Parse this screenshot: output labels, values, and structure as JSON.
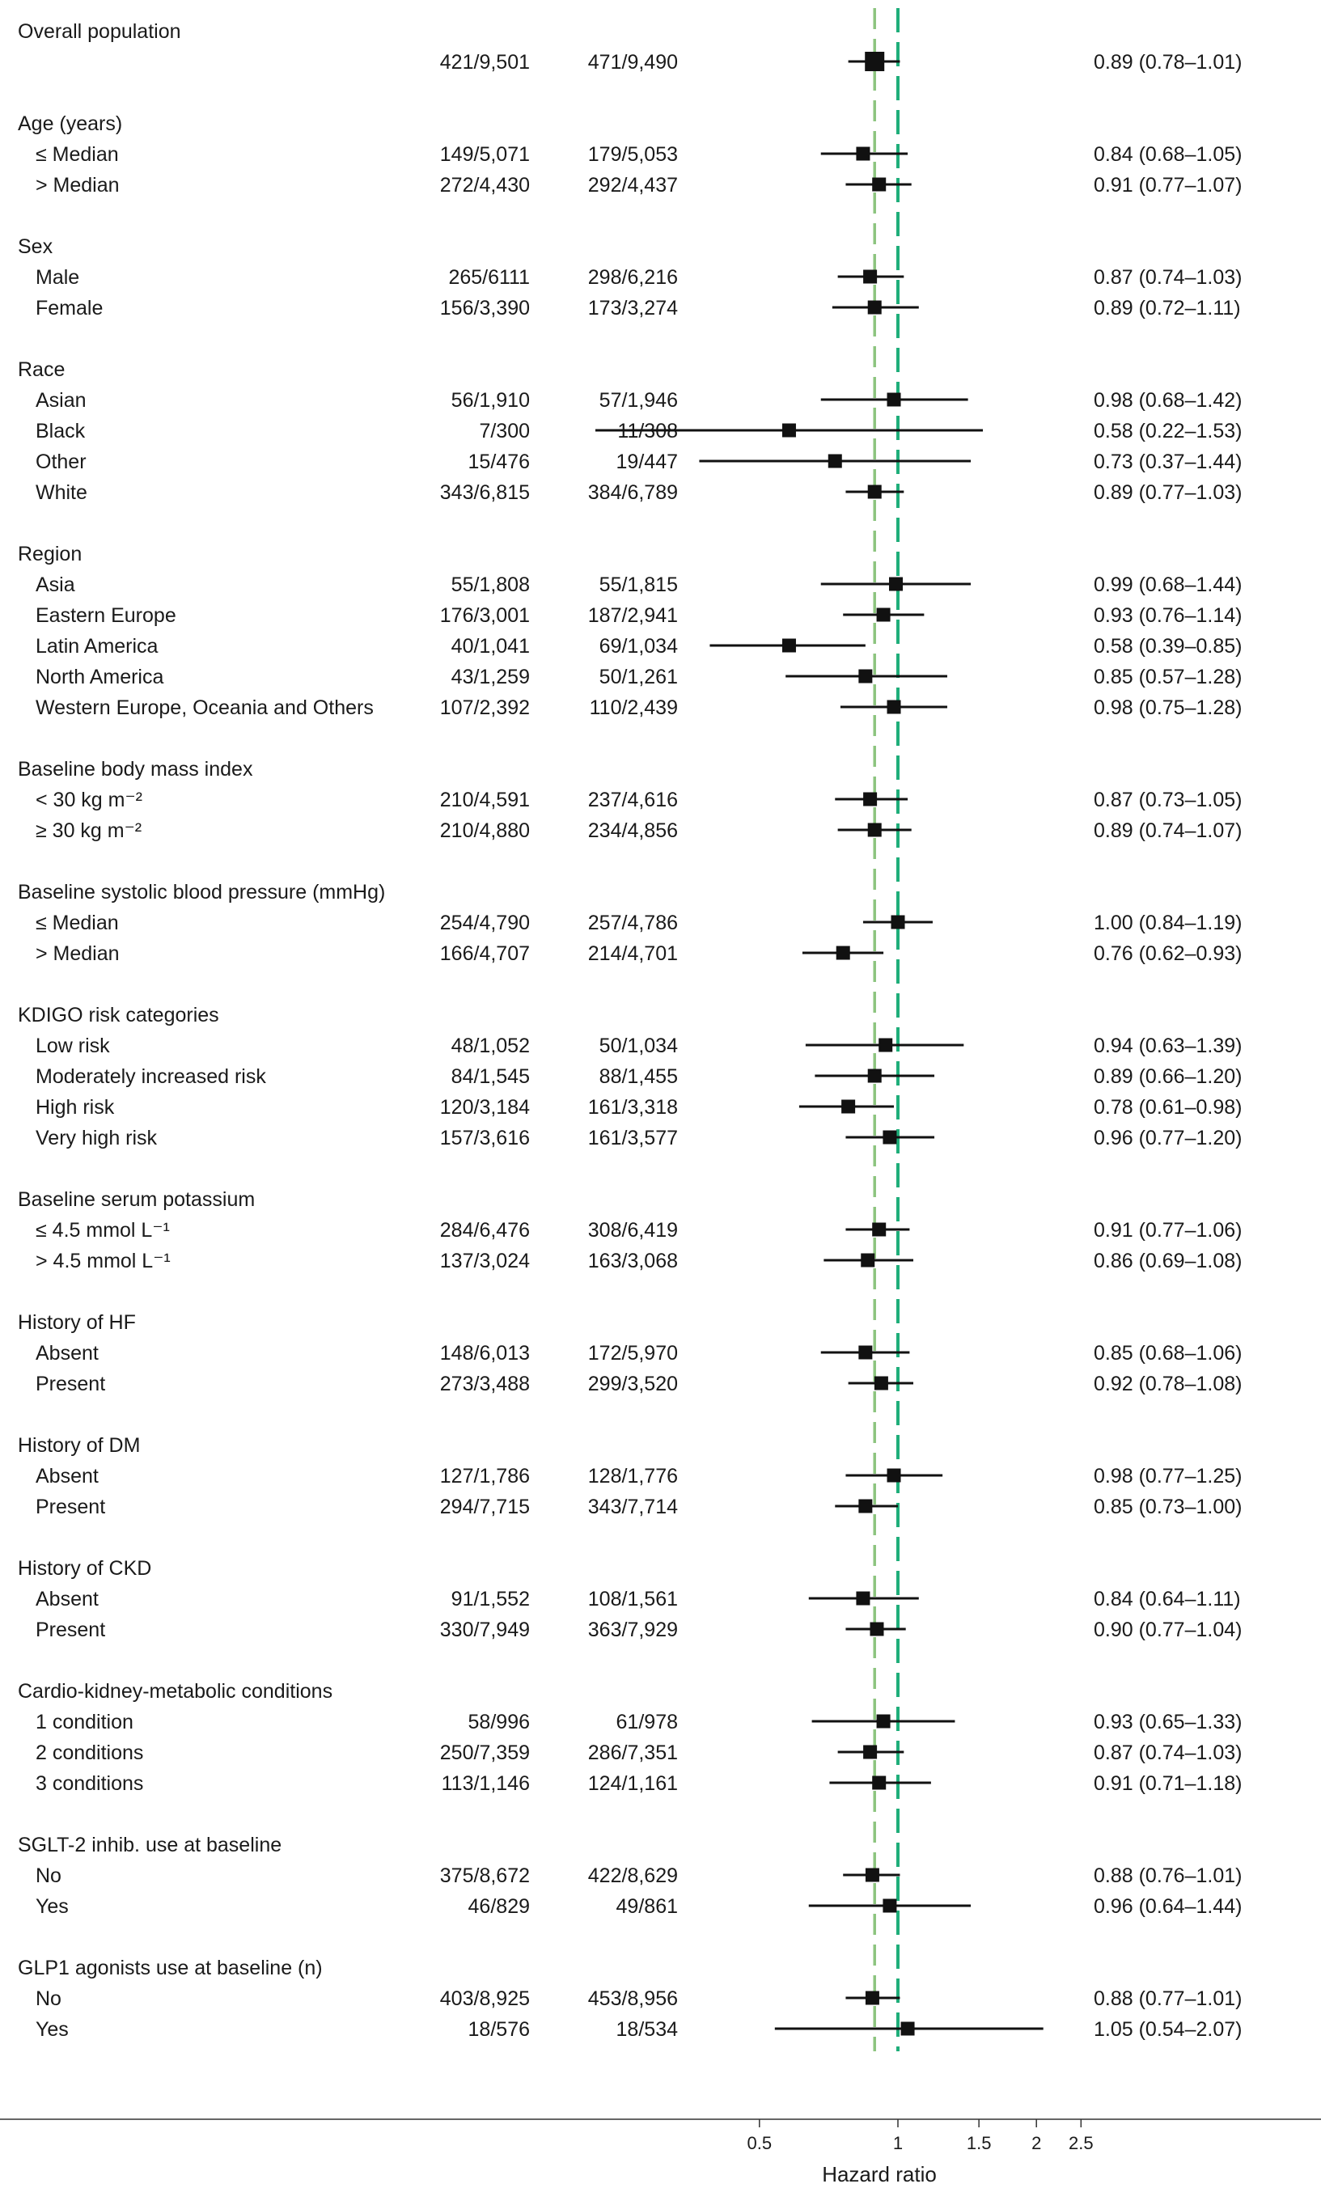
{
  "chart_data": {
    "type": "forest",
    "x_scale": "log",
    "xlim": [
      0.3,
      3.2
    ],
    "xticks": [
      {
        "value": 0.5,
        "label": "0.5"
      },
      {
        "value": 1,
        "label": "1"
      },
      {
        "value": 1.5,
        "label": "1.5"
      },
      {
        "value": 2,
        "label": "2"
      },
      {
        "value": 2.5,
        "label": "2.5"
      }
    ],
    "xlabel": "Hazard ratio",
    "reference_lines": [
      {
        "value": 1.0,
        "color": "#1fae7a"
      },
      {
        "value": 0.89,
        "color": "#8cc47f"
      }
    ],
    "groups": [
      {
        "title": "Overall population",
        "rows": [
          {
            "label": "",
            "n1": "421/9,501",
            "n2": "471/9,490",
            "hr": 0.89,
            "lo": 0.78,
            "hi": 1.01,
            "text": "0.89 (0.78–1.01)"
          }
        ]
      },
      {
        "title": "Age (years)",
        "rows": [
          {
            "label": "≤ Median",
            "n1": "149/5,071",
            "n2": "179/5,053",
            "hr": 0.84,
            "lo": 0.68,
            "hi": 1.05,
            "text": "0.84 (0.68–1.05)"
          },
          {
            "label": "> Median",
            "n1": "272/4,430",
            "n2": "292/4,437",
            "hr": 0.91,
            "lo": 0.77,
            "hi": 1.07,
            "text": "0.91 (0.77–1.07)"
          }
        ]
      },
      {
        "title": "Sex",
        "rows": [
          {
            "label": "Male",
            "n1": "265/6111",
            "n2": "298/6,216",
            "hr": 0.87,
            "lo": 0.74,
            "hi": 1.03,
            "text": "0.87 (0.74–1.03)"
          },
          {
            "label": "Female",
            "n1": "156/3,390",
            "n2": "173/3,274",
            "hr": 0.89,
            "lo": 0.72,
            "hi": 1.11,
            "text": "0.89 (0.72–1.11)"
          }
        ]
      },
      {
        "title": "Race",
        "rows": [
          {
            "label": "Asian",
            "n1": "56/1,910",
            "n2": "57/1,946",
            "hr": 0.98,
            "lo": 0.68,
            "hi": 1.42,
            "text": "0.98 (0.68–1.42)"
          },
          {
            "label": "Black",
            "n1": "7/300",
            "n2": "11/308",
            "hr": 0.58,
            "lo": 0.22,
            "hi": 1.53,
            "text": "0.58 (0.22–1.53)"
          },
          {
            "label": "Other",
            "n1": "15/476",
            "n2": "19/447",
            "hr": 0.73,
            "lo": 0.37,
            "hi": 1.44,
            "text": "0.73 (0.37–1.44)"
          },
          {
            "label": "White",
            "n1": "343/6,815",
            "n2": "384/6,789",
            "hr": 0.89,
            "lo": 0.77,
            "hi": 1.03,
            "text": "0.89 (0.77–1.03)"
          }
        ]
      },
      {
        "title": "Region",
        "rows": [
          {
            "label": "Asia",
            "n1": "55/1,808",
            "n2": "55/1,815",
            "hr": 0.99,
            "lo": 0.68,
            "hi": 1.44,
            "text": "0.99 (0.68–1.44)"
          },
          {
            "label": "Eastern Europe",
            "n1": "176/3,001",
            "n2": "187/2,941",
            "hr": 0.93,
            "lo": 0.76,
            "hi": 1.14,
            "text": "0.93 (0.76–1.14)"
          },
          {
            "label": "Latin America",
            "n1": "40/1,041",
            "n2": "69/1,034",
            "hr": 0.58,
            "lo": 0.39,
            "hi": 0.85,
            "text": "0.58 (0.39–0.85)"
          },
          {
            "label": "North America",
            "n1": "43/1,259",
            "n2": "50/1,261",
            "hr": 0.85,
            "lo": 0.57,
            "hi": 1.28,
            "text": "0.85 (0.57–1.28)"
          },
          {
            "label": "Western Europe, Oceania and Others",
            "n1": "107/2,392",
            "n2": "110/2,439",
            "hr": 0.98,
            "lo": 0.75,
            "hi": 1.28,
            "text": "0.98 (0.75–1.28)"
          }
        ]
      },
      {
        "title": "Baseline body mass index",
        "rows": [
          {
            "label": "< 30 kg m⁻²",
            "n1": "210/4,591",
            "n2": "237/4,616",
            "hr": 0.87,
            "lo": 0.73,
            "hi": 1.05,
            "text": "0.87 (0.73–1.05)"
          },
          {
            "label": "≥ 30 kg m⁻²",
            "n1": "210/4,880",
            "n2": "234/4,856",
            "hr": 0.89,
            "lo": 0.74,
            "hi": 1.07,
            "text": "0.89 (0.74–1.07)"
          }
        ]
      },
      {
        "title": "Baseline systolic blood pressure (mmHg)",
        "rows": [
          {
            "label": "≤ Median",
            "n1": "254/4,790",
            "n2": "257/4,786",
            "hr": 1.0,
            "lo": 0.84,
            "hi": 1.19,
            "text": "1.00 (0.84–1.19)"
          },
          {
            "label": "> Median",
            "n1": "166/4,707",
            "n2": "214/4,701",
            "hr": 0.76,
            "lo": 0.62,
            "hi": 0.93,
            "text": "0.76 (0.62–0.93)"
          }
        ]
      },
      {
        "title": "KDIGO risk categories",
        "rows": [
          {
            "label": "Low risk",
            "n1": "48/1,052",
            "n2": "50/1,034",
            "hr": 0.94,
            "lo": 0.63,
            "hi": 1.39,
            "text": "0.94 (0.63–1.39)"
          },
          {
            "label": "Moderately increased risk",
            "n1": "84/1,545",
            "n2": "88/1,455",
            "hr": 0.89,
            "lo": 0.66,
            "hi": 1.2,
            "text": "0.89 (0.66–1.20)"
          },
          {
            "label": "High risk",
            "n1": "120/3,184",
            "n2": "161/3,318",
            "hr": 0.78,
            "lo": 0.61,
            "hi": 0.98,
            "text": "0.78 (0.61–0.98)"
          },
          {
            "label": "Very high risk",
            "n1": "157/3,616",
            "n2": "161/3,577",
            "hr": 0.96,
            "lo": 0.77,
            "hi": 1.2,
            "text": "0.96 (0.77–1.20)"
          }
        ]
      },
      {
        "title": "Baseline serum potassium",
        "rows": [
          {
            "label": "≤ 4.5 mmol L⁻¹",
            "n1": "284/6,476",
            "n2": "308/6,419",
            "hr": 0.91,
            "lo": 0.77,
            "hi": 1.06,
            "text": "0.91 (0.77–1.06)"
          },
          {
            "label": "> 4.5 mmol L⁻¹",
            "n1": "137/3,024",
            "n2": "163/3,068",
            "hr": 0.86,
            "lo": 0.69,
            "hi": 1.08,
            "text": "0.86 (0.69–1.08)"
          }
        ]
      },
      {
        "title": "History of HF",
        "rows": [
          {
            "label": "Absent",
            "n1": "148/6,013",
            "n2": "172/5,970",
            "hr": 0.85,
            "lo": 0.68,
            "hi": 1.06,
            "text": "0.85 (0.68–1.06)"
          },
          {
            "label": "Present",
            "n1": "273/3,488",
            "n2": "299/3,520",
            "hr": 0.92,
            "lo": 0.78,
            "hi": 1.08,
            "text": "0.92 (0.78–1.08)"
          }
        ]
      },
      {
        "title": "History of DM",
        "rows": [
          {
            "label": "Absent",
            "n1": "127/1,786",
            "n2": "128/1,776",
            "hr": 0.98,
            "lo": 0.77,
            "hi": 1.25,
            "text": "0.98 (0.77–1.25)"
          },
          {
            "label": "Present",
            "n1": "294/7,715",
            "n2": "343/7,714",
            "hr": 0.85,
            "lo": 0.73,
            "hi": 1.0,
            "text": "0.85 (0.73–1.00)"
          }
        ]
      },
      {
        "title": "History of CKD",
        "rows": [
          {
            "label": "Absent",
            "n1": "91/1,552",
            "n2": "108/1,561",
            "hr": 0.84,
            "lo": 0.64,
            "hi": 1.11,
            "text": "0.84 (0.64–1.11)"
          },
          {
            "label": "Present",
            "n1": "330/7,949",
            "n2": "363/7,929",
            "hr": 0.9,
            "lo": 0.77,
            "hi": 1.04,
            "text": "0.90 (0.77–1.04)"
          }
        ]
      },
      {
        "title": "Cardio-kidney-metabolic conditions",
        "rows": [
          {
            "label": "1 condition",
            "n1": "58/996",
            "n2": "61/978",
            "hr": 0.93,
            "lo": 0.65,
            "hi": 1.33,
            "text": "0.93 (0.65–1.33)"
          },
          {
            "label": "2 conditions",
            "n1": "250/7,359",
            "n2": "286/7,351",
            "hr": 0.87,
            "lo": 0.74,
            "hi": 1.03,
            "text": "0.87 (0.74–1.03)"
          },
          {
            "label": "3 conditions",
            "n1": "113/1,146",
            "n2": "124/1,161",
            "hr": 0.91,
            "lo": 0.71,
            "hi": 1.18,
            "text": "0.91 (0.71–1.18)"
          }
        ]
      },
      {
        "title": "SGLT-2 inhib. use at baseline",
        "rows": [
          {
            "label": "No",
            "n1": "375/8,672",
            "n2": "422/8,629",
            "hr": 0.88,
            "lo": 0.76,
            "hi": 1.01,
            "text": "0.88 (0.76–1.01)"
          },
          {
            "label": "Yes",
            "n1": "46/829",
            "n2": "49/861",
            "hr": 0.96,
            "lo": 0.64,
            "hi": 1.44,
            "text": "0.96 (0.64–1.44)"
          }
        ]
      },
      {
        "title": "GLP1 agonists use at baseline (n)",
        "rows": [
          {
            "label": "No",
            "n1": "403/8,925",
            "n2": "453/8,956",
            "hr": 0.88,
            "lo": 0.77,
            "hi": 1.01,
            "text": "0.88 (0.77–1.01)"
          },
          {
            "label": "Yes",
            "n1": "18/576",
            "n2": "18/534",
            "hr": 1.05,
            "lo": 0.54,
            "hi": 2.07,
            "text": "1.05 (0.54–2.07)"
          }
        ]
      }
    ]
  }
}
